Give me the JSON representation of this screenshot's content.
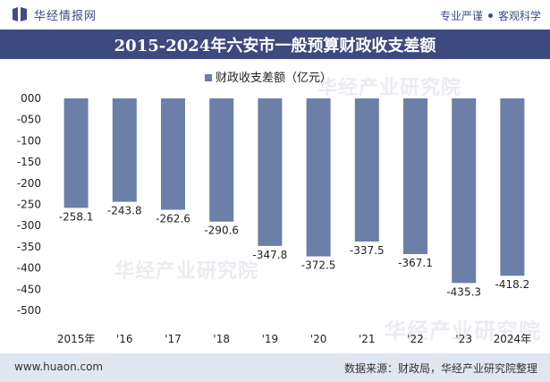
{
  "header": {
    "brand": "华经情报网",
    "tagline_left": "专业严谨",
    "tagline_right": "客观科学"
  },
  "colors": {
    "bar": "#6b7fa8",
    "title_bg": "#3d4a7f",
    "footer_bg": "#dfe7f1"
  },
  "chart_data": {
    "type": "bar",
    "title": "2015-2024年六安市一般预算财政收支差额",
    "categories": [
      "2015年",
      "'16",
      "'17",
      "'18",
      "'19",
      "'20",
      "'21",
      "'22",
      "'23",
      "2024年"
    ],
    "series": [
      {
        "name": "财政收支差额（亿元）",
        "values": [
          -258.1,
          -243.8,
          -262.6,
          -290.6,
          -347.8,
          -372.5,
          -337.5,
          -367.1,
          -435.3,
          -418.2
        ]
      }
    ],
    "data_labels": [
      "-258.1",
      "-243.8",
      "-262.6",
      "-290.6",
      "-347.8",
      "-372.5",
      "-337.5",
      "-367.1",
      "-435.3",
      "-418.2"
    ],
    "ylim": [
      -500,
      0
    ],
    "yticks": [
      "000",
      "-050",
      "-100",
      "-150",
      "-200",
      "-250",
      "-300",
      "-350",
      "-400",
      "-450",
      "-500"
    ],
    "ytick_values": [
      0,
      -50,
      -100,
      -150,
      -200,
      -250,
      -300,
      -350,
      -400,
      -450,
      -500
    ],
    "legend_position": "top-center",
    "grid": false
  },
  "watermark": {
    "cn": "华经产业研究院",
    "en": "www.huaon.com"
  },
  "footer": {
    "left": "www.huaon.com",
    "right": "数据来源：财政局，华经产业研究院整理"
  }
}
